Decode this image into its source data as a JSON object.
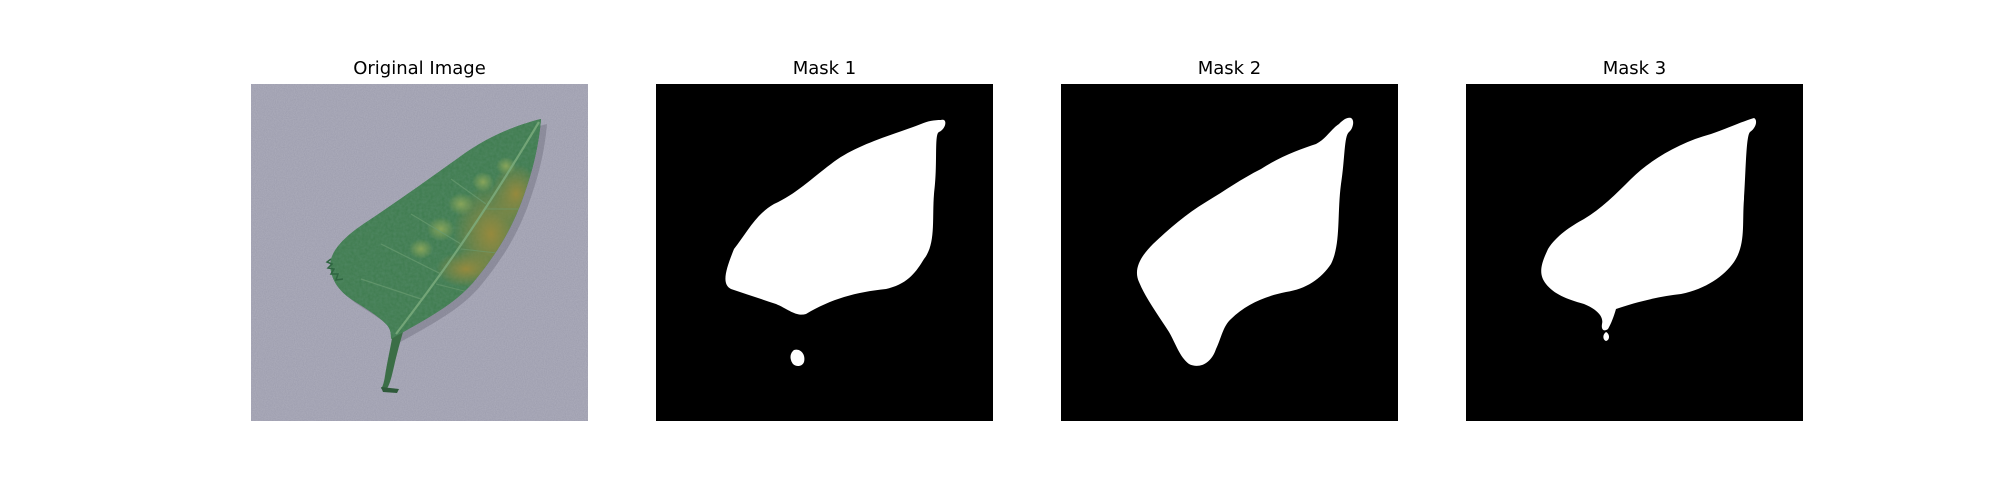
{
  "figure": {
    "panels": [
      {
        "title": "Original Image",
        "kind": "photo"
      },
      {
        "title": "Mask 1",
        "kind": "mask"
      },
      {
        "title": "Mask 2",
        "kind": "mask"
      },
      {
        "title": "Mask 3",
        "kind": "mask"
      }
    ]
  },
  "colors": {
    "background": "#ffffff",
    "mask_background": "#000000",
    "mask_foreground": "#ffffff",
    "photo_background": "#9b9bac",
    "leaf_green": "#3c7a4c",
    "leaf_dark_green": "#2e6540",
    "leaf_lesion": "#8c8a3e",
    "leaf_vein": "#7eae80"
  }
}
